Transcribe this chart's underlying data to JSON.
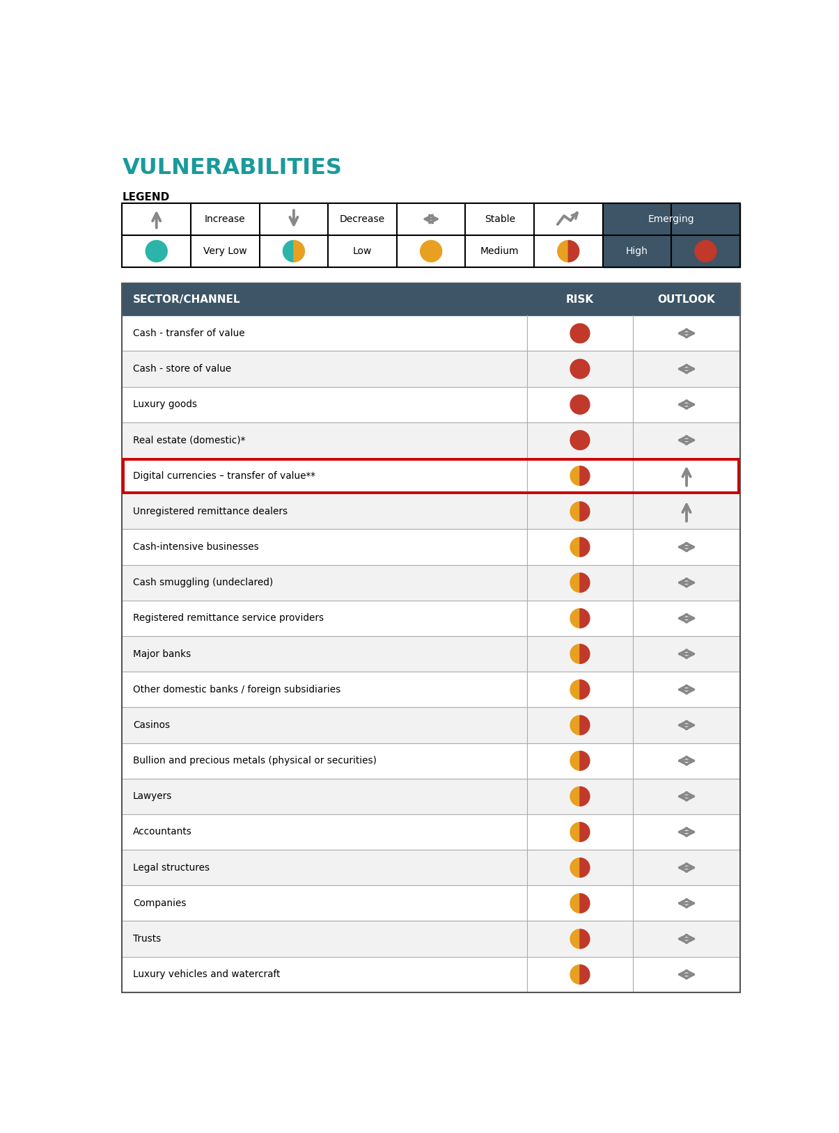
{
  "title": "VULNERABILITIES",
  "legend_label": "LEGEND",
  "header_bg": "#3d5566",
  "header_text_color": "#ffffff",
  "title_color": "#1a9a9a",
  "red_border_color": "#cc0000",
  "rows": [
    {
      "sector": "Cash - transfer of value",
      "risk": "very_high",
      "outlook": "stable",
      "highlight": false
    },
    {
      "sector": "Cash - store of value",
      "risk": "very_high",
      "outlook": "stable",
      "highlight": false
    },
    {
      "sector": "Luxury goods",
      "risk": "very_high",
      "outlook": "stable",
      "highlight": false
    },
    {
      "sector": "Real estate (domestic)*",
      "risk": "very_high",
      "outlook": "stable",
      "highlight": false
    },
    {
      "sector": "Digital currencies – transfer of value**",
      "risk": "high",
      "outlook": "increase",
      "highlight": true
    },
    {
      "sector": "Unregistered remittance dealers",
      "risk": "high",
      "outlook": "increase",
      "highlight": false
    },
    {
      "sector": "Cash-intensive businesses",
      "risk": "high",
      "outlook": "stable",
      "highlight": false
    },
    {
      "sector": "Cash smuggling (undeclared)",
      "risk": "high",
      "outlook": "stable",
      "highlight": false
    },
    {
      "sector": "Registered remittance service providers",
      "risk": "high",
      "outlook": "stable",
      "highlight": false
    },
    {
      "sector": "Major banks",
      "risk": "high",
      "outlook": "stable",
      "highlight": false
    },
    {
      "sector": "Other domestic banks / foreign subsidiaries",
      "risk": "high",
      "outlook": "stable",
      "highlight": false
    },
    {
      "sector": "Casinos",
      "risk": "high",
      "outlook": "stable",
      "highlight": false
    },
    {
      "sector": "Bullion and precious metals (physical or securities)",
      "risk": "high",
      "outlook": "stable",
      "highlight": false
    },
    {
      "sector": "Lawyers",
      "risk": "high",
      "outlook": "stable",
      "highlight": false
    },
    {
      "sector": "Accountants",
      "risk": "high",
      "outlook": "stable",
      "highlight": false
    },
    {
      "sector": "Legal structures",
      "risk": "high",
      "outlook": "stable",
      "highlight": false
    },
    {
      "sector": "Companies",
      "risk": "high",
      "outlook": "stable",
      "highlight": false
    },
    {
      "sector": "Trusts",
      "risk": "high",
      "outlook": "stable",
      "highlight": false
    },
    {
      "sector": "Luxury vehicles and watercraft",
      "risk": "high",
      "outlook": "stable",
      "highlight": false
    }
  ],
  "color_very_high": "#c0392b",
  "color_high_left": "#e8a020",
  "color_high_right": "#c0392b",
  "color_teal": "#2ab5a8",
  "color_orange": "#e8a020",
  "color_dark": "#3d5566",
  "color_arrow": "#888888",
  "color_border": "#555555",
  "color_row_border": "#aaaaaa"
}
